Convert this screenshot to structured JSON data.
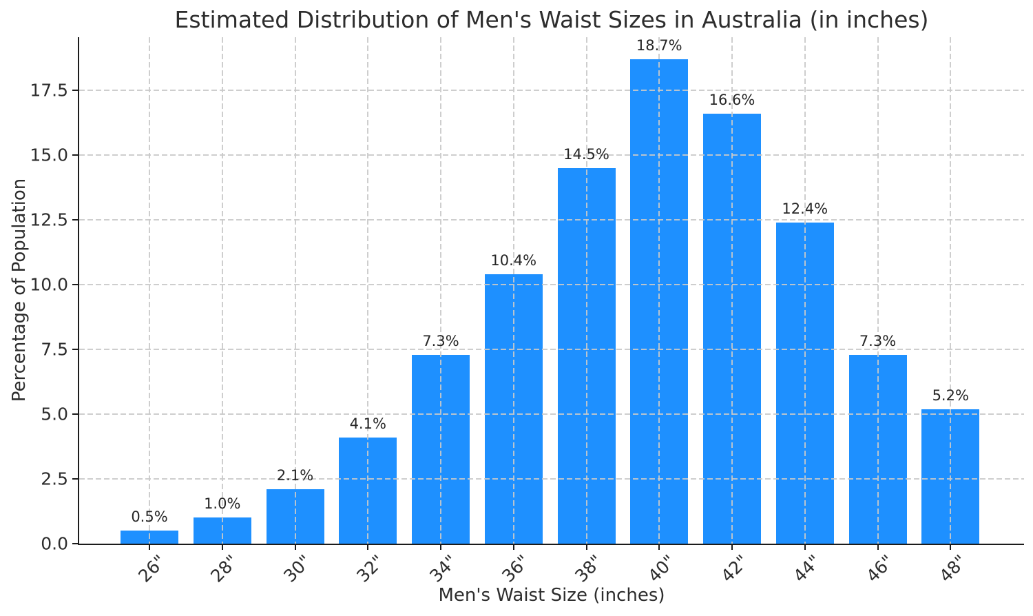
{
  "chart_data": {
    "type": "bar",
    "title": "Estimated Distribution of Men's Waist Sizes in Australia (in inches)",
    "xlabel": "Men's Waist Size (inches)",
    "ylabel": "Percentage of Population",
    "categories": [
      "26\"",
      "28\"",
      "30\"",
      "32\"",
      "34\"",
      "36\"",
      "38\"",
      "40\"",
      "42\"",
      "44\"",
      "46\"",
      "48\""
    ],
    "values": [
      0.5,
      1.0,
      2.1,
      4.1,
      7.3,
      10.4,
      14.5,
      18.7,
      16.6,
      12.4,
      7.3,
      5.2
    ],
    "value_labels": [
      "0.5%",
      "1.0%",
      "2.1%",
      "4.1%",
      "7.3%",
      "10.4%",
      "14.5%",
      "18.7%",
      "16.6%",
      "12.4%",
      "7.3%",
      "5.2%"
    ],
    "yticks": [
      0.0,
      2.5,
      5.0,
      7.5,
      10.0,
      12.5,
      15.0,
      17.5
    ],
    "ytick_labels": [
      "0.0",
      "2.5",
      "5.0",
      "7.5",
      "10.0",
      "12.5",
      "15.0",
      "17.5"
    ],
    "ylim": [
      0,
      19.55
    ],
    "grid": true,
    "grid_style": "dashed",
    "grid_over_bars": true,
    "legend_position": "none",
    "bar_color": "#1E90FF",
    "grid_color": "#c9c9c9",
    "axis_color": "#1c1c1c",
    "text_color": "#2d2d2d"
  }
}
